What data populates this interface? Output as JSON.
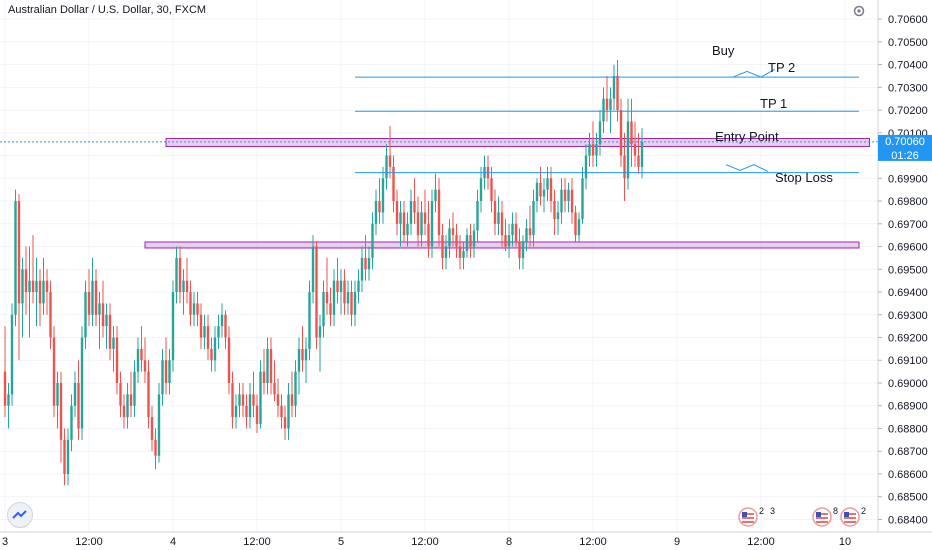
{
  "header": {
    "symbol_title": "Australian Dollar / U.S. Dollar, 30, FXCM"
  },
  "price_axis": {
    "ticks": [
      "0.70600",
      "0.70500",
      "0.70400",
      "0.70300",
      "0.70200",
      "0.70100",
      "0.70000",
      "0.69900",
      "0.69800",
      "0.69700",
      "0.69600",
      "0.69500",
      "0.69400",
      "0.69300",
      "0.69200",
      "0.69100",
      "0.69000",
      "0.68900",
      "0.68800",
      "0.68700",
      "0.68600",
      "0.68500",
      "0.68400"
    ],
    "last_price_label": "0.70060",
    "countdown_label": "01:26",
    "last_price": 0.7006,
    "colors": {
      "last_price_bg": "#2196f3"
    }
  },
  "time_axis": {
    "labels": [
      {
        "label": "3",
        "bar": 0
      },
      {
        "label": "12:00",
        "bar": 24
      },
      {
        "label": "4",
        "bar": 48
      },
      {
        "label": "12:00",
        "bar": 72
      },
      {
        "label": "5",
        "bar": 96
      },
      {
        "label": "12:00",
        "bar": 120
      },
      {
        "label": "8",
        "bar": 144
      },
      {
        "label": "12:00",
        "bar": 168
      },
      {
        "label": "9",
        "bar": 192
      },
      {
        "label": "12:00",
        "bar": 216
      },
      {
        "label": "10",
        "bar": 240
      }
    ]
  },
  "annotations": {
    "buy": "Buy",
    "tp2": "TP 2",
    "tp1": "TP 1",
    "entry": "Entry Point",
    "stop": "Stop Loss"
  },
  "event_badges": [
    {
      "count": "2",
      "label2": "3"
    },
    {
      "count": "8"
    },
    {
      "count": "2"
    }
  ],
  "chart_data": {
    "type": "candlestick",
    "ylim": [
      0.6838,
      0.7064
    ],
    "total_bars": 248,
    "colors": {
      "up": "#26a69a",
      "down": "#ef5350",
      "line": "#2196f3",
      "zone_fill": "#e1bee7",
      "zone_stroke": "#9c27b0"
    },
    "candles": [
      [
        0.6905,
        0.6925,
        0.6885,
        0.689
      ],
      [
        0.689,
        0.69,
        0.688,
        0.6895
      ],
      [
        0.6895,
        0.6935,
        0.689,
        0.693
      ],
      [
        0.693,
        0.6985,
        0.6925,
        0.698
      ],
      [
        0.698,
        0.6983,
        0.691,
        0.6935
      ],
      [
        0.6935,
        0.6955,
        0.692,
        0.695
      ],
      [
        0.695,
        0.696,
        0.693,
        0.694
      ],
      [
        0.694,
        0.696,
        0.692,
        0.6945
      ],
      [
        0.6945,
        0.6965,
        0.6935,
        0.694
      ],
      [
        0.694,
        0.6955,
        0.6925,
        0.6945
      ],
      [
        0.6945,
        0.695,
        0.6925,
        0.6935
      ],
      [
        0.6935,
        0.6955,
        0.693,
        0.6945
      ],
      [
        0.6945,
        0.695,
        0.693,
        0.694
      ],
      [
        0.694,
        0.6945,
        0.6915,
        0.692
      ],
      [
        0.692,
        0.6925,
        0.6885,
        0.689
      ],
      [
        0.689,
        0.6905,
        0.688,
        0.69
      ],
      [
        0.69,
        0.6905,
        0.6865,
        0.6875
      ],
      [
        0.6875,
        0.688,
        0.6855,
        0.686
      ],
      [
        0.686,
        0.688,
        0.6855,
        0.6875
      ],
      [
        0.6875,
        0.6895,
        0.687,
        0.689
      ],
      [
        0.689,
        0.6905,
        0.6885,
        0.69
      ],
      [
        0.69,
        0.691,
        0.6875,
        0.688
      ],
      [
        0.688,
        0.6925,
        0.6875,
        0.692
      ],
      [
        0.692,
        0.6945,
        0.6915,
        0.694
      ],
      [
        0.694,
        0.695,
        0.6925,
        0.693
      ],
      [
        0.693,
        0.6955,
        0.6925,
        0.6945
      ],
      [
        0.6945,
        0.695,
        0.6925,
        0.693
      ],
      [
        0.693,
        0.694,
        0.6915,
        0.6935
      ],
      [
        0.6935,
        0.6945,
        0.692,
        0.6925
      ],
      [
        0.6925,
        0.6935,
        0.6915,
        0.693
      ],
      [
        0.693,
        0.6935,
        0.691,
        0.6915
      ],
      [
        0.6915,
        0.6925,
        0.6905,
        0.692
      ],
      [
        0.692,
        0.6925,
        0.6895,
        0.69
      ],
      [
        0.69,
        0.6905,
        0.6885,
        0.689
      ],
      [
        0.689,
        0.6895,
        0.688,
        0.6885
      ],
      [
        0.6885,
        0.69,
        0.688,
        0.6895
      ],
      [
        0.6895,
        0.6905,
        0.6885,
        0.689
      ],
      [
        0.689,
        0.691,
        0.6885,
        0.6905
      ],
      [
        0.6905,
        0.692,
        0.69,
        0.6915
      ],
      [
        0.6915,
        0.6925,
        0.6905,
        0.691
      ],
      [
        0.691,
        0.692,
        0.69,
        0.6905
      ],
      [
        0.6905,
        0.691,
        0.688,
        0.6885
      ],
      [
        0.6885,
        0.689,
        0.687,
        0.6875
      ],
      [
        0.6875,
        0.688,
        0.6862,
        0.6868
      ],
      [
        0.6868,
        0.69,
        0.6865,
        0.6895
      ],
      [
        0.6895,
        0.6915,
        0.689,
        0.691
      ],
      [
        0.691,
        0.692,
        0.6895,
        0.69
      ],
      [
        0.69,
        0.6915,
        0.6895,
        0.691
      ],
      [
        0.691,
        0.6945,
        0.6905,
        0.694
      ],
      [
        0.694,
        0.696,
        0.6935,
        0.6955
      ],
      [
        0.6955,
        0.696,
        0.6935,
        0.694
      ],
      [
        0.694,
        0.695,
        0.693,
        0.6945
      ],
      [
        0.6945,
        0.6955,
        0.6935,
        0.694
      ],
      [
        0.694,
        0.6945,
        0.6925,
        0.693
      ],
      [
        0.693,
        0.694,
        0.6925,
        0.6935
      ],
      [
        0.6935,
        0.694,
        0.6925,
        0.693
      ],
      [
        0.693,
        0.6935,
        0.6915,
        0.692
      ],
      [
        0.692,
        0.693,
        0.6915,
        0.6925
      ],
      [
        0.6925,
        0.693,
        0.691,
        0.6915
      ],
      [
        0.6915,
        0.692,
        0.6905,
        0.691
      ],
      [
        0.691,
        0.6925,
        0.6905,
        0.692
      ],
      [
        0.692,
        0.693,
        0.6915,
        0.6925
      ],
      [
        0.6925,
        0.6935,
        0.692,
        0.693
      ],
      [
        0.693,
        0.6932,
        0.6915,
        0.692
      ],
      [
        0.692,
        0.6925,
        0.6895,
        0.69
      ],
      [
        0.69,
        0.6905,
        0.688,
        0.6885
      ],
      [
        0.6885,
        0.6895,
        0.688,
        0.689
      ],
      [
        0.689,
        0.69,
        0.6885,
        0.6895
      ],
      [
        0.6895,
        0.69,
        0.6885,
        0.689
      ],
      [
        0.689,
        0.6895,
        0.688,
        0.6885
      ],
      [
        0.6885,
        0.69,
        0.688,
        0.6895
      ],
      [
        0.6895,
        0.6905,
        0.6885,
        0.689
      ],
      [
        0.689,
        0.6895,
        0.6878,
        0.6882
      ],
      [
        0.6882,
        0.691,
        0.688,
        0.6905
      ],
      [
        0.6905,
        0.6915,
        0.6895,
        0.69
      ],
      [
        0.69,
        0.692,
        0.6895,
        0.6915
      ],
      [
        0.6915,
        0.692,
        0.6895,
        0.69
      ],
      [
        0.69,
        0.691,
        0.6892,
        0.6895
      ],
      [
        0.6895,
        0.6902,
        0.6885,
        0.689
      ],
      [
        0.689,
        0.6895,
        0.688,
        0.6885
      ],
      [
        0.6885,
        0.689,
        0.6875,
        0.688
      ],
      [
        0.688,
        0.69,
        0.6875,
        0.6895
      ],
      [
        0.6895,
        0.6905,
        0.6885,
        0.689
      ],
      [
        0.689,
        0.691,
        0.6885,
        0.6905
      ],
      [
        0.6905,
        0.692,
        0.6895,
        0.6915
      ],
      [
        0.6915,
        0.6925,
        0.6905,
        0.691
      ],
      [
        0.691,
        0.692,
        0.69,
        0.6915
      ],
      [
        0.6915,
        0.6945,
        0.691,
        0.694
      ],
      [
        0.694,
        0.6965,
        0.6935,
        0.696
      ],
      [
        0.696,
        0.6962,
        0.6915,
        0.692
      ],
      [
        0.692,
        0.693,
        0.6905,
        0.6925
      ],
      [
        0.6925,
        0.6945,
        0.692,
        0.694
      ],
      [
        0.694,
        0.6955,
        0.693,
        0.6935
      ],
      [
        0.6935,
        0.6942,
        0.6925,
        0.693
      ],
      [
        0.693,
        0.695,
        0.6925,
        0.6945
      ],
      [
        0.6945,
        0.6955,
        0.6935,
        0.694
      ],
      [
        0.694,
        0.695,
        0.693,
        0.6945
      ],
      [
        0.6945,
        0.695,
        0.693,
        0.6935
      ],
      [
        0.6935,
        0.6945,
        0.693,
        0.694
      ],
      [
        0.694,
        0.6945,
        0.6925,
        0.693
      ],
      [
        0.693,
        0.6945,
        0.6925,
        0.694
      ],
      [
        0.694,
        0.695,
        0.6935,
        0.6945
      ],
      [
        0.6945,
        0.696,
        0.694,
        0.6955
      ],
      [
        0.6955,
        0.6965,
        0.6945,
        0.695
      ],
      [
        0.695,
        0.696,
        0.6945,
        0.6955
      ],
      [
        0.6955,
        0.6975,
        0.695,
        0.697
      ],
      [
        0.697,
        0.6985,
        0.6965,
        0.698
      ],
      [
        0.698,
        0.699,
        0.697,
        0.6975
      ],
      [
        0.6975,
        0.6995,
        0.697,
        0.699
      ],
      [
        0.699,
        0.7005,
        0.6985,
        0.7
      ],
      [
        0.7,
        0.7013,
        0.699,
        0.6995
      ],
      [
        0.6995,
        0.7,
        0.6975,
        0.698
      ],
      [
        0.698,
        0.6985,
        0.6965,
        0.697
      ],
      [
        0.697,
        0.698,
        0.696,
        0.6975
      ],
      [
        0.6975,
        0.698,
        0.6962,
        0.6965
      ],
      [
        0.6965,
        0.6975,
        0.696,
        0.697
      ],
      [
        0.697,
        0.6985,
        0.6965,
        0.698
      ],
      [
        0.698,
        0.699,
        0.697,
        0.6975
      ],
      [
        0.6975,
        0.6982,
        0.696,
        0.6965
      ],
      [
        0.6965,
        0.698,
        0.696,
        0.6975
      ],
      [
        0.6975,
        0.6985,
        0.6965,
        0.697
      ],
      [
        0.697,
        0.698,
        0.6955,
        0.696
      ],
      [
        0.696,
        0.6985,
        0.6955,
        0.698
      ],
      [
        0.698,
        0.6992,
        0.6975,
        0.6985
      ],
      [
        0.6985,
        0.699,
        0.696,
        0.6965
      ],
      [
        0.6965,
        0.697,
        0.695,
        0.6955
      ],
      [
        0.6955,
        0.6965,
        0.695,
        0.696
      ],
      [
        0.696,
        0.6972,
        0.6955,
        0.6968
      ],
      [
        0.6968,
        0.6975,
        0.696,
        0.6965
      ],
      [
        0.6965,
        0.697,
        0.6955,
        0.696
      ],
      [
        0.696,
        0.6965,
        0.695,
        0.6955
      ],
      [
        0.6955,
        0.6962,
        0.695,
        0.6958
      ],
      [
        0.6958,
        0.6968,
        0.6955,
        0.6965
      ],
      [
        0.6965,
        0.697,
        0.6955,
        0.696
      ],
      [
        0.696,
        0.697,
        0.6955,
        0.6967
      ],
      [
        0.6967,
        0.6985,
        0.6962,
        0.698
      ],
      [
        0.698,
        0.6995,
        0.6975,
        0.699
      ],
      [
        0.699,
        0.7,
        0.6985,
        0.6995
      ],
      [
        0.6995,
        0.7,
        0.6985,
        0.699
      ],
      [
        0.699,
        0.6995,
        0.6975,
        0.698
      ],
      [
        0.698,
        0.6985,
        0.6965,
        0.697
      ],
      [
        0.697,
        0.6982,
        0.6965,
        0.6975
      ],
      [
        0.6975,
        0.698,
        0.696,
        0.6965
      ],
      [
        0.6965,
        0.6972,
        0.6958,
        0.696
      ],
      [
        0.696,
        0.697,
        0.6955,
        0.6965
      ],
      [
        0.6965,
        0.6975,
        0.696,
        0.697
      ],
      [
        0.697,
        0.6975,
        0.696,
        0.6962
      ],
      [
        0.6962,
        0.6968,
        0.695,
        0.6955
      ],
      [
        0.6955,
        0.6965,
        0.695,
        0.6962
      ],
      [
        0.6962,
        0.6972,
        0.6958,
        0.6968
      ],
      [
        0.6968,
        0.6978,
        0.696,
        0.6965
      ],
      [
        0.6965,
        0.6985,
        0.696,
        0.698
      ],
      [
        0.698,
        0.699,
        0.6975,
        0.6988
      ],
      [
        0.6988,
        0.6995,
        0.6978,
        0.6982
      ],
      [
        0.6982,
        0.699,
        0.6975,
        0.6985
      ],
      [
        0.6985,
        0.6995,
        0.698,
        0.699
      ],
      [
        0.699,
        0.6995,
        0.6975,
        0.698
      ],
      [
        0.698,
        0.6985,
        0.6965,
        0.6972
      ],
      [
        0.6972,
        0.698,
        0.6965,
        0.6975
      ],
      [
        0.6975,
        0.699,
        0.697,
        0.6985
      ],
      [
        0.6985,
        0.699,
        0.6975,
        0.698
      ],
      [
        0.698,
        0.6988,
        0.6975,
        0.6985
      ],
      [
        0.6985,
        0.699,
        0.697,
        0.6975
      ],
      [
        0.6975,
        0.6978,
        0.6962,
        0.6965
      ],
      [
        0.6965,
        0.6975,
        0.6962,
        0.6972
      ],
      [
        0.6972,
        0.6995,
        0.697,
        0.699
      ],
      [
        0.699,
        0.7005,
        0.6985,
        0.7
      ],
      [
        0.7,
        0.701,
        0.6995,
        0.7005
      ],
      [
        0.7005,
        0.7015,
        0.6995,
        0.7
      ],
      [
        0.7,
        0.701,
        0.6995,
        0.7005
      ],
      [
        0.7005,
        0.702,
        0.7,
        0.7015
      ],
      [
        0.7015,
        0.703,
        0.701,
        0.7025
      ],
      [
        0.7025,
        0.7035,
        0.7015,
        0.702
      ],
      [
        0.702,
        0.703,
        0.701,
        0.7025
      ],
      [
        0.7025,
        0.704,
        0.702,
        0.7035
      ],
      [
        0.7035,
        0.7042,
        0.7015,
        0.702
      ],
      [
        0.702,
        0.7025,
        0.6995,
        0.7
      ],
      [
        0.7,
        0.701,
        0.698,
        0.699
      ],
      [
        0.699,
        0.7025,
        0.6985,
        0.7015
      ],
      [
        0.7015,
        0.7025,
        0.6995,
        0.7005
      ],
      [
        0.7005,
        0.7015,
        0.6995,
        0.7
      ],
      [
        0.7,
        0.701,
        0.6992,
        0.6995
      ],
      [
        0.6995,
        0.7012,
        0.699,
        0.7006
      ]
    ],
    "lines": [
      {
        "name": "tp2",
        "price": 0.70345,
        "from_bar": 100,
        "to_bar": 244
      },
      {
        "name": "tp1",
        "price": 0.70195,
        "from_bar": 100,
        "to_bar": 244
      },
      {
        "name": "stop",
        "price": 0.69925,
        "from_bar": 100,
        "to_bar": 244
      }
    ],
    "zones": [
      {
        "name": "entry-zone",
        "top": 0.70075,
        "bottom": 0.7004,
        "from_bar": 46,
        "to_bar": 247
      },
      {
        "name": "support-zone",
        "top": 0.6962,
        "bottom": 0.69605,
        "from_bar": 40,
        "to_bar": 244
      }
    ],
    "projections": [
      {
        "name": "buy-projection",
        "points": [
          [
            208,
            0.70345
          ],
          [
            212,
            0.7037
          ],
          [
            216,
            0.70345
          ],
          [
            220,
            0.7038
          ]
        ]
      },
      {
        "name": "stop-projection",
        "points": [
          [
            206,
            0.6996
          ],
          [
            210,
            0.69935
          ],
          [
            214,
            0.6996
          ],
          [
            218,
            0.6993
          ]
        ]
      }
    ]
  }
}
